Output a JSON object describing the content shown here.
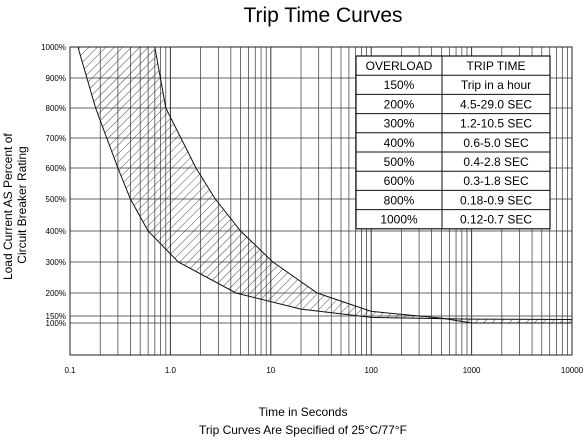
{
  "chart_data": {
    "type": "area",
    "title": "Trip Time Curves",
    "xlabel": "Time in Seconds",
    "ylabel_lines": [
      "Load Current AS Percent of",
      "Circuit Breaker Rating"
    ],
    "footnote": "Trip Curves Are Specified of 25°C/77°F",
    "x_scale": "log",
    "xlim": [
      0.1,
      10000
    ],
    "x_tick_labels": [
      {
        "value": 0.1,
        "label": "0.1"
      },
      {
        "value": 1,
        "label": "1.0"
      },
      {
        "value": 10,
        "label": "10"
      },
      {
        "value": 100,
        "label": "100"
      },
      {
        "value": 1000,
        "label": "1000"
      },
      {
        "value": 10000,
        "label": "10000"
      }
    ],
    "y_tick_labels": [
      {
        "value": 100,
        "label": "100%"
      },
      {
        "value": 150,
        "label": "150%"
      },
      {
        "value": 200,
        "label": "200%"
      },
      {
        "value": 300,
        "label": "300%"
      },
      {
        "value": 400,
        "label": "400%"
      },
      {
        "value": 500,
        "label": "500%"
      },
      {
        "value": 600,
        "label": "600%"
      },
      {
        "value": 700,
        "label": "700%"
      },
      {
        "value": 800,
        "label": "800%"
      },
      {
        "value": 900,
        "label": "900%"
      },
      {
        "value": 1000,
        "label": "1000%"
      }
    ],
    "grid": true,
    "band": {
      "fill": "hatched",
      "lower_curve": [
        {
          "x": 0.12,
          "y": 1000
        },
        {
          "x": 0.18,
          "y": 800
        },
        {
          "x": 0.3,
          "y": 600
        },
        {
          "x": 0.4,
          "y": 500
        },
        {
          "x": 0.6,
          "y": 400
        },
        {
          "x": 1.2,
          "y": 300
        },
        {
          "x": 4.5,
          "y": 200
        },
        {
          "x": 20,
          "y": 165
        },
        {
          "x": 100,
          "y": 140
        },
        {
          "x": 1000,
          "y": 128
        },
        {
          "x": 10000,
          "y": 125
        }
      ],
      "upper_curve": [
        {
          "x": 0.7,
          "y": 1000
        },
        {
          "x": 0.9,
          "y": 800
        },
        {
          "x": 1.8,
          "y": 600
        },
        {
          "x": 2.8,
          "y": 500
        },
        {
          "x": 5.0,
          "y": 400
        },
        {
          "x": 10.5,
          "y": 300
        },
        {
          "x": 29,
          "y": 200
        },
        {
          "x": 100,
          "y": 160
        },
        {
          "x": 500,
          "y": 135
        },
        {
          "x": 1000,
          "y": 100
        },
        {
          "x": 10000,
          "y": 100
        }
      ]
    },
    "table": {
      "headers": [
        "OVERLOAD",
        "TRIP TIME"
      ],
      "rows": [
        [
          "150%",
          "Trip in a hour"
        ],
        [
          "200%",
          "4.5-29.0 SEC"
        ],
        [
          "300%",
          "1.2-10.5 SEC"
        ],
        [
          "400%",
          "0.6-5.0 SEC"
        ],
        [
          "500%",
          "0.4-2.8 SEC"
        ],
        [
          "600%",
          "0.3-1.8 SEC"
        ],
        [
          "800%",
          "0.18-0.9 SEC"
        ],
        [
          "1000%",
          "0.12-0.7 SEC"
        ]
      ]
    }
  }
}
